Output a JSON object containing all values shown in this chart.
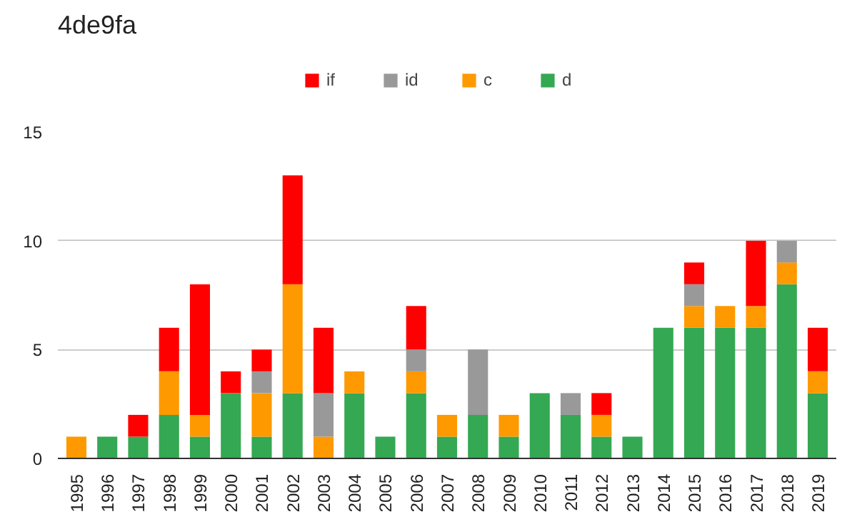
{
  "chart_data": {
    "type": "bar",
    "title": "4de9fa",
    "stacked": true,
    "categories": [
      "1995",
      "1996",
      "1997",
      "1998",
      "1999",
      "2000",
      "2001",
      "2002",
      "2003",
      "2004",
      "2005",
      "2006",
      "2007",
      "2008",
      "2009",
      "2010",
      "2011",
      "2012",
      "2013",
      "2014",
      "2015",
      "2016",
      "2017",
      "2018",
      "2019"
    ],
    "series": [
      {
        "name": "d",
        "color": "#34a853",
        "values": [
          0,
          1,
          1,
          2,
          1,
          3,
          1,
          3,
          0,
          3,
          1,
          3,
          1,
          2,
          1,
          3,
          2,
          1,
          1,
          6,
          6,
          6,
          6,
          8,
          3
        ]
      },
      {
        "name": "c",
        "color": "#ff9900",
        "values": [
          1,
          0,
          0,
          2,
          1,
          0,
          2,
          5,
          1,
          1,
          0,
          1,
          1,
          0,
          1,
          0,
          0,
          1,
          0,
          0,
          1,
          1,
          1,
          1,
          1
        ]
      },
      {
        "name": "id",
        "color": "#999999",
        "values": [
          0,
          0,
          0,
          0,
          0,
          0,
          1,
          0,
          2,
          0,
          0,
          1,
          0,
          3,
          0,
          0,
          1,
          0,
          0,
          0,
          1,
          0,
          0,
          1,
          0
        ]
      },
      {
        "name": "if",
        "color": "#ff0000",
        "values": [
          0,
          0,
          1,
          2,
          6,
          1,
          1,
          5,
          3,
          0,
          0,
          2,
          0,
          0,
          0,
          0,
          0,
          1,
          0,
          0,
          1,
          0,
          3,
          0,
          2
        ]
      }
    ],
    "ylim": [
      0,
      15
    ],
    "yticks": [
      0,
      5,
      10,
      15
    ],
    "grid": "y",
    "legend": "top"
  }
}
